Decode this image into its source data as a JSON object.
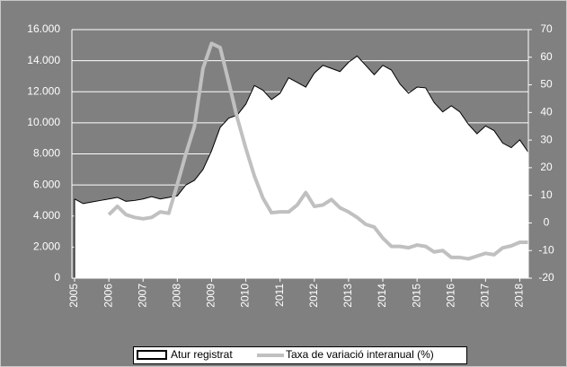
{
  "chart_data": {
    "type": "area-line",
    "x": [
      2005,
      2005.25,
      2005.5,
      2005.75,
      2006,
      2006.25,
      2006.5,
      2006.75,
      2007,
      2007.25,
      2007.5,
      2007.75,
      2008,
      2008.25,
      2008.5,
      2008.75,
      2009,
      2009.25,
      2009.5,
      2009.75,
      2010,
      2010.25,
      2010.5,
      2010.75,
      2011,
      2011.25,
      2011.5,
      2011.75,
      2012,
      2012.25,
      2012.5,
      2012.75,
      2013,
      2013.25,
      2013.5,
      2013.75,
      2014,
      2014.25,
      2014.5,
      2014.75,
      2015,
      2015.25,
      2015.5,
      2015.75,
      2016,
      2016.25,
      2016.5,
      2016.75,
      2017,
      2017.25,
      2017.5,
      2017.75,
      2018,
      2018.25
    ],
    "series": [
      {
        "name": "Atur registrat",
        "color": "#ffffff",
        "stroke": "#000000",
        "axis": "y",
        "values": [
          5100,
          4800,
          4900,
          5000,
          5100,
          5200,
          4950,
          5000,
          5100,
          5250,
          5100,
          5200,
          5300,
          6000,
          6300,
          7000,
          8200,
          9700,
          10300,
          10500,
          11200,
          12400,
          12100,
          11500,
          11900,
          12900,
          12600,
          12300,
          13200,
          13700,
          13500,
          13300,
          13900,
          14300,
          13700,
          13100,
          13700,
          13400,
          12500,
          11900,
          12300,
          12250,
          11300,
          10700,
          11100,
          10700,
          9900,
          9300,
          9800,
          9500,
          8700,
          8400,
          8900,
          8100
        ]
      },
      {
        "name": "Taxa de variació interanual (%)",
        "color": "#c0c0c0",
        "axis": "y2",
        "values": [
          null,
          null,
          null,
          null,
          3,
          6,
          3,
          2,
          1.5,
          2,
          4,
          3.5,
          14,
          25,
          35,
          56,
          65,
          63.5,
          51,
          38,
          27,
          17,
          9,
          3.7,
          4,
          4,
          6.5,
          11,
          6,
          6.5,
          8.5,
          5.5,
          4,
          2,
          -0.5,
          -1.5,
          -5.5,
          -8.5,
          -8.5,
          -9,
          -8,
          -8.5,
          -10.5,
          -10,
          -12.5,
          -12.5,
          -13,
          -12,
          -11,
          -11.5,
          -9,
          -8.3,
          -7,
          -7
        ]
      }
    ],
    "xlim": [
      2005,
      2018.25
    ],
    "xticks": [
      2005,
      2006,
      2007,
      2008,
      2009,
      2010,
      2011,
      2012,
      2013,
      2014,
      2015,
      2016,
      2017,
      2018
    ],
    "ylim": [
      0,
      16000
    ],
    "yticks": [
      0,
      {
        "value": 2000,
        "label": "2.000"
      },
      {
        "value": 4000,
        "label": "4.000"
      },
      {
        "value": 6000,
        "label": "6.000"
      },
      {
        "value": 8000,
        "label": "8.000"
      },
      {
        "value": 10000,
        "label": "10.000"
      },
      {
        "value": 12000,
        "label": "12.000"
      },
      {
        "value": 14000,
        "label": "14.000"
      },
      {
        "value": 16000,
        "label": "16.000"
      }
    ],
    "y2lim": [
      -20,
      70
    ],
    "y2ticks": [
      -20,
      -10,
      0,
      10,
      20,
      30,
      40,
      50,
      60,
      70
    ],
    "grid": true,
    "legend": "bottom"
  }
}
